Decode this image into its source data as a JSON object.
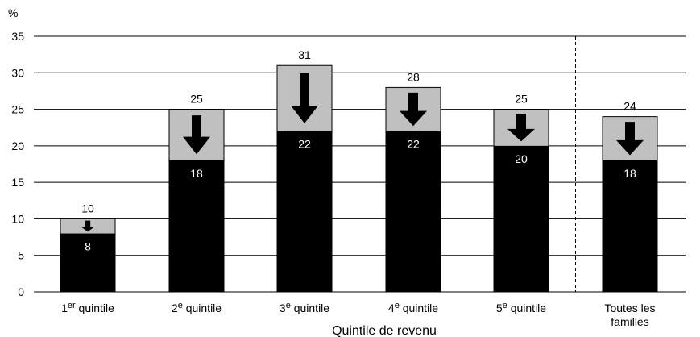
{
  "chart_data": {
    "type": "bar",
    "y_unit": "%",
    "xlabel": "Quintile de revenu",
    "ylim": [
      0,
      35
    ],
    "yticks": [
      0,
      5,
      10,
      15,
      20,
      25,
      30,
      35
    ],
    "grid": true,
    "categories": [
      {
        "pre": "1",
        "sup": "er",
        "post": " quintile"
      },
      {
        "pre": "2",
        "sup": "e",
        "post": " quintile"
      },
      {
        "pre": "3",
        "sup": "e",
        "post": " quintile"
      },
      {
        "pre": "4",
        "sup": "e",
        "post": " quintile"
      },
      {
        "pre": "5",
        "sup": "e",
        "post": " quintile"
      },
      {
        "lines": [
          "Toutes les",
          "familles"
        ]
      }
    ],
    "series": [
      {
        "values": [
          10,
          25,
          31,
          28,
          25,
          24
        ]
      },
      {
        "values": [
          8,
          18,
          22,
          22,
          20,
          18
        ]
      }
    ],
    "separator_after_index": 4,
    "colors": {
      "outer": "#c0c0c0",
      "inner": "#000000",
      "grid": "#000000"
    }
  }
}
